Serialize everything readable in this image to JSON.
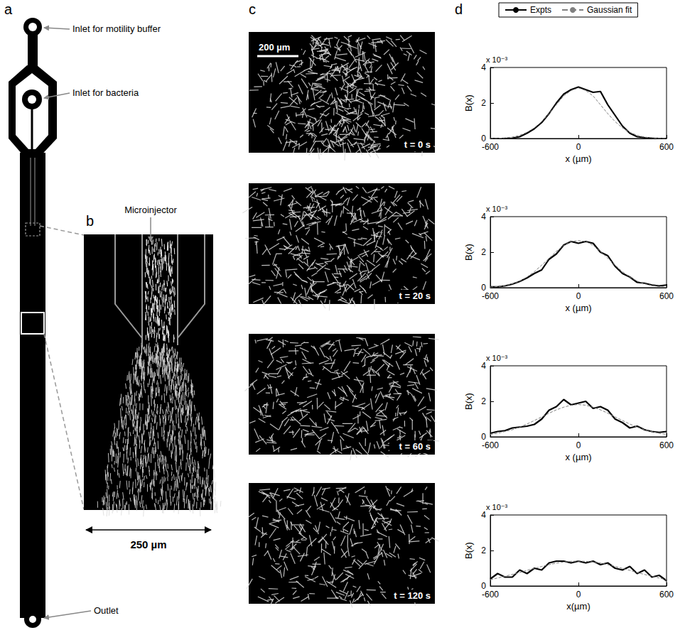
{
  "figure": {
    "a": {
      "letter": "a",
      "labels": [
        "Inlet for motility buffer",
        "Inlet for bacteria",
        "Outlet"
      ]
    },
    "b": {
      "letter": "b",
      "top_label": "Microinjector",
      "scale_bar": "250 µm"
    },
    "c": {
      "letter": "c",
      "scale_bar": "200 µm",
      "frames": [
        "t = 0 s",
        "t = 20 s",
        "t = 60 s",
        "t = 120 s"
      ]
    },
    "d": {
      "letter": "d"
    }
  },
  "chart_data": [
    {
      "type": "line",
      "ylabel": "B(x)",
      "y_scale_label": "x 10⁻³",
      "xlabel": "x (µm)",
      "xlim": [
        -600,
        600
      ],
      "xticks": [
        -600,
        0,
        600
      ],
      "ylim": [
        0,
        4
      ],
      "yticks": [
        0,
        2,
        4
      ],
      "grid": false,
      "legend": "top",
      "x": [
        -600,
        -550,
        -500,
        -450,
        -400,
        -350,
        -300,
        -250,
        -200,
        -150,
        -100,
        -50,
        0,
        50,
        100,
        150,
        200,
        250,
        300,
        350,
        400,
        450,
        500,
        550,
        600
      ],
      "series": [
        {
          "name": "Expts",
          "color": "#000000",
          "line_style": "solid",
          "values": [
            0,
            0,
            0,
            0.02,
            0.1,
            0.3,
            0.55,
            0.9,
            1.4,
            2.0,
            2.5,
            2.75,
            2.9,
            2.75,
            2.6,
            2.65,
            1.9,
            1.3,
            0.7,
            0.3,
            0.1,
            0.05,
            0.02,
            0,
            0
          ]
        },
        {
          "name": "Gaussian fit",
          "color": "#808080",
          "line_style": "dashed",
          "values": [
            0,
            0,
            0.04,
            0.08,
            0.18,
            0.35,
            0.6,
            0.95,
            1.4,
            1.9,
            2.4,
            2.7,
            2.85,
            2.7,
            2.4,
            1.9,
            1.4,
            0.95,
            0.6,
            0.35,
            0.18,
            0.08,
            0.04,
            0,
            0
          ]
        }
      ]
    },
    {
      "type": "line",
      "ylabel": "B(x)",
      "y_scale_label": "x 10⁻³",
      "xlabel": "x (µm)",
      "xlim": [
        -600,
        600
      ],
      "xticks": [
        -600,
        0,
        600
      ],
      "ylim": [
        0,
        4
      ],
      "yticks": [
        0,
        2,
        4
      ],
      "grid": false,
      "x": [
        -600,
        -550,
        -500,
        -450,
        -400,
        -350,
        -300,
        -250,
        -200,
        -150,
        -100,
        -50,
        0,
        50,
        100,
        150,
        200,
        250,
        300,
        350,
        400,
        450,
        500,
        550,
        600
      ],
      "series": [
        {
          "name": "Expts",
          "color": "#000000",
          "line_style": "solid",
          "values": [
            0.05,
            0.05,
            0.1,
            0.2,
            0.35,
            0.55,
            0.8,
            1.0,
            1.6,
            1.9,
            2.4,
            2.6,
            2.5,
            2.6,
            2.5,
            2.0,
            1.8,
            1.2,
            0.8,
            0.6,
            0.3,
            0.25,
            0.15,
            0.1,
            0.15
          ]
        },
        {
          "name": "Gaussian fit",
          "color": "#808080",
          "line_style": "dashed",
          "values": [
            0.03,
            0.06,
            0.12,
            0.22,
            0.37,
            0.6,
            0.9,
            1.27,
            1.65,
            2.05,
            2.38,
            2.6,
            2.65,
            2.6,
            2.38,
            2.05,
            1.65,
            1.27,
            0.9,
            0.6,
            0.37,
            0.22,
            0.12,
            0.06,
            0.03
          ]
        }
      ]
    },
    {
      "type": "line",
      "ylabel": "B(x)",
      "y_scale_label": "x 10⁻³",
      "xlabel": "x (µm)",
      "xlim": [
        -600,
        600
      ],
      "xticks": [
        -600,
        0,
        600
      ],
      "ylim": [
        0,
        4
      ],
      "yticks": [
        0,
        2,
        4
      ],
      "grid": false,
      "x": [
        -600,
        -550,
        -500,
        -450,
        -400,
        -350,
        -300,
        -250,
        -200,
        -150,
        -100,
        -50,
        0,
        50,
        100,
        150,
        200,
        250,
        300,
        350,
        400,
        450,
        500,
        550,
        600
      ],
      "series": [
        {
          "name": "Expts",
          "color": "#000000",
          "line_style": "solid",
          "values": [
            0.2,
            0.3,
            0.35,
            0.5,
            0.55,
            0.6,
            0.7,
            1.0,
            1.5,
            1.7,
            2.1,
            1.8,
            1.9,
            2.0,
            1.6,
            1.7,
            1.5,
            1.0,
            0.8,
            0.5,
            0.6,
            0.4,
            0.3,
            0.25,
            0.3
          ]
        },
        {
          "name": "Gaussian fit",
          "color": "#808080",
          "line_style": "dashed",
          "values": [
            0.14,
            0.2,
            0.3,
            0.4,
            0.55,
            0.72,
            0.92,
            1.12,
            1.33,
            1.52,
            1.67,
            1.78,
            1.82,
            1.78,
            1.67,
            1.52,
            1.33,
            1.12,
            0.92,
            0.72,
            0.55,
            0.4,
            0.3,
            0.2,
            0.14
          ]
        }
      ]
    },
    {
      "type": "line",
      "ylabel": "B(x)",
      "y_scale_label": "x 10⁻³",
      "xlabel": "x(µm)",
      "xlim": [
        -600,
        600
      ],
      "xticks": [
        -600,
        0,
        600
      ],
      "ylim": [
        0,
        4
      ],
      "yticks": [
        0,
        2,
        4
      ],
      "grid": false,
      "x": [
        -600,
        -550,
        -500,
        -450,
        -400,
        -350,
        -300,
        -250,
        -200,
        -150,
        -100,
        -50,
        0,
        50,
        100,
        150,
        200,
        250,
        300,
        350,
        400,
        450,
        500,
        550,
        600
      ],
      "series": [
        {
          "name": "Expts",
          "color": "#000000",
          "line_style": "solid",
          "values": [
            0.4,
            0.7,
            0.5,
            0.5,
            0.9,
            0.7,
            1.0,
            0.9,
            1.3,
            1.4,
            1.4,
            1.3,
            1.4,
            1.3,
            1.4,
            1.2,
            1.3,
            1.0,
            0.9,
            1.1,
            0.7,
            0.9,
            0.5,
            0.6,
            0.3
          ]
        },
        {
          "name": "Gaussian fit",
          "color": "#808080",
          "line_style": "dashed",
          "values": [
            0.35,
            0.45,
            0.55,
            0.65,
            0.76,
            0.88,
            0.99,
            1.1,
            1.2,
            1.29,
            1.35,
            1.39,
            1.4,
            1.39,
            1.35,
            1.29,
            1.2,
            1.1,
            0.99,
            0.88,
            0.76,
            0.65,
            0.55,
            0.45,
            0.35
          ]
        }
      ]
    }
  ]
}
